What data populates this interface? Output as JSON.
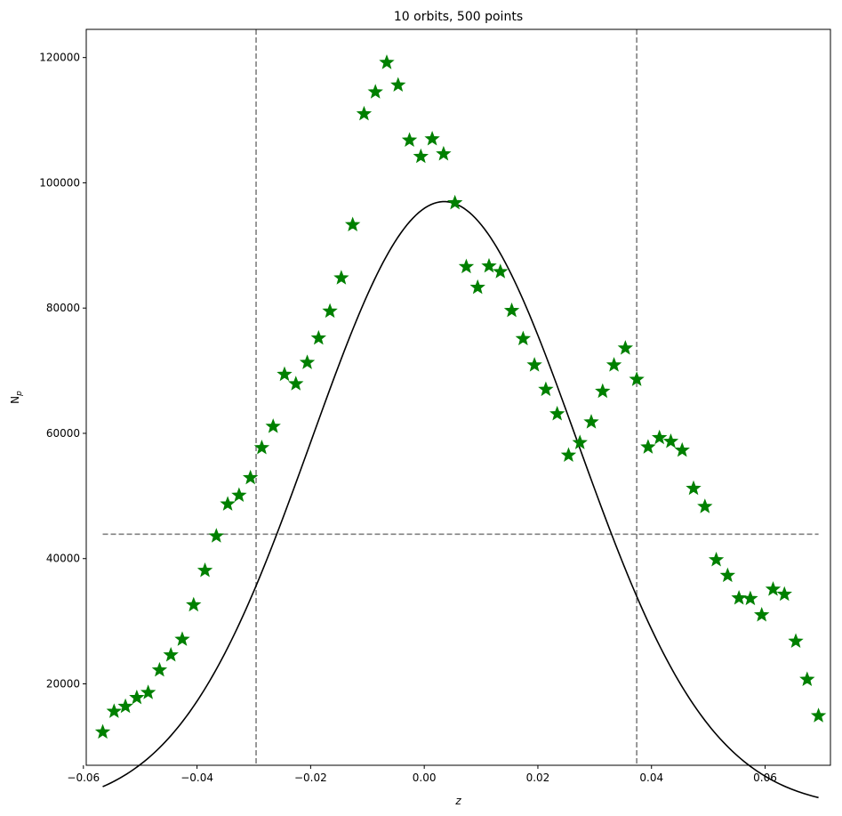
{
  "chart_data": {
    "type": "scatter",
    "title": "10 orbits, 500 points",
    "xlabel": "z",
    "ylabel": "N",
    "ylabel_subscript": "p",
    "xlim": [
      -0.0595,
      0.0715
    ],
    "ylim": [
      7000,
      124500
    ],
    "xticks": [
      -0.06,
      -0.04,
      -0.02,
      0.0,
      0.02,
      0.04,
      0.06
    ],
    "xtick_labels": [
      "−0.06",
      "−0.04",
      "−0.02",
      "0.00",
      "0.02",
      "0.04",
      "0.06"
    ],
    "yticks": [
      20000,
      40000,
      60000,
      80000,
      100000,
      120000
    ],
    "ytick_labels": [
      "20000",
      "40000",
      "60000",
      "80000",
      "100000",
      "120000"
    ],
    "grid": false,
    "colors": {
      "points": "#008000",
      "curve": "#000000",
      "reference": "#808080"
    },
    "series": [
      {
        "type": "scatter",
        "marker": "star",
        "x": [
          -0.0566,
          -0.0546,
          -0.0526,
          -0.0506,
          -0.0486,
          -0.0466,
          -0.0446,
          -0.0426,
          -0.0406,
          -0.0386,
          -0.0366,
          -0.0346,
          -0.0326,
          -0.0306,
          -0.0286,
          -0.0266,
          -0.0246,
          -0.0226,
          -0.0206,
          -0.0186,
          -0.0166,
          -0.0146,
          -0.0126,
          -0.0106,
          -0.0086,
          -0.0066,
          -0.0046,
          -0.0026,
          -0.0006,
          0.0014,
          0.0034,
          0.0054,
          0.0074,
          0.0094,
          0.0114,
          0.0134,
          0.0154,
          0.0174,
          0.0194,
          0.0214,
          0.0234,
          0.0254,
          0.0274,
          0.0294,
          0.0314,
          0.0334,
          0.0354,
          0.0374,
          0.0394,
          0.0414,
          0.0434,
          0.0454,
          0.0474,
          0.0494,
          0.0514,
          0.0534,
          0.0554,
          0.0574,
          0.0594,
          0.0614,
          0.0634,
          0.0654,
          0.0674,
          0.0694
        ],
        "y": [
          12300,
          15600,
          16400,
          17800,
          18600,
          22200,
          24600,
          27100,
          32600,
          38100,
          43600,
          48700,
          50100,
          52900,
          57700,
          61100,
          69400,
          67900,
          71300,
          75200,
          79500,
          84800,
          93300,
          111000,
          114500,
          119200,
          115600,
          106800,
          104200,
          107000,
          104600,
          96800,
          86600,
          83300,
          86700,
          85800,
          79600,
          75100,
          70900,
          67000,
          63100,
          56500,
          58500,
          61800,
          66700,
          70900,
          73600,
          68600,
          57800,
          59300,
          58700,
          57300,
          51200,
          48300,
          39800,
          37300,
          33700,
          33600,
          31000,
          35100,
          34300,
          26800,
          20700,
          14900
        ]
      },
      {
        "type": "line",
        "gaussian": {
          "amplitude": 97000,
          "mean": 0.0035,
          "sigma": 0.0234
        },
        "x_range": [
          -0.0566,
          0.0694
        ]
      }
    ],
    "reference_lines": {
      "horizontal_y": 43900,
      "horizontal_x_range": [
        -0.0566,
        0.0694
      ],
      "vertical_x": [
        -0.0296,
        0.0374
      ]
    }
  }
}
